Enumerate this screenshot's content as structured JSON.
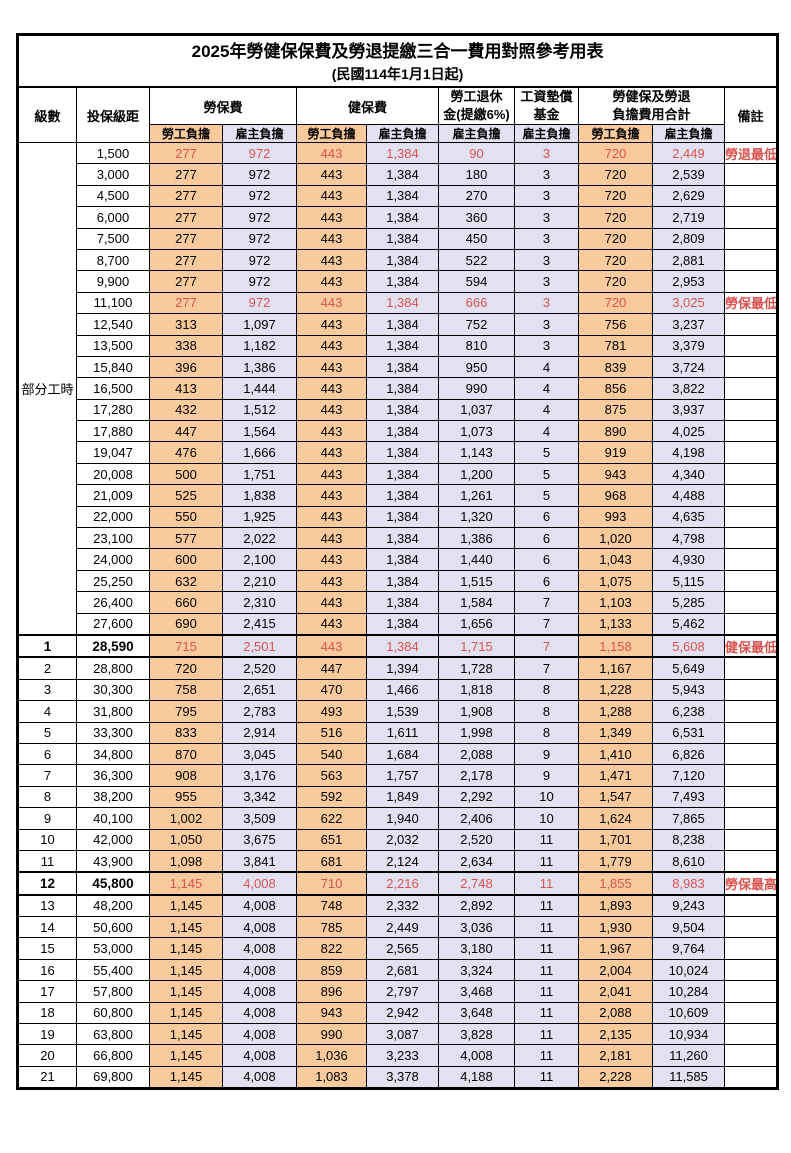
{
  "title": "2025年勞健保保費及勞退提繳三合一費用對照參考用表",
  "subtitle": "(民國114年1月1日起)",
  "header": {
    "level": "級數",
    "bracket": "投保級距",
    "labor_insurance": "勞保費",
    "health_insurance": "健保費",
    "pension_line1": "勞工退休",
    "pension_line2": "金(提繳6%)",
    "wage_fund_line1": "工資墊償",
    "wage_fund_line2": "基金",
    "total_line1": "勞健保及勞退",
    "total_line2": "負擔費用合計",
    "remark": "備註",
    "employee_share": "勞工負擔",
    "employer_share": "雇主負擔"
  },
  "part_time_label": "部分工時",
  "colors": {
    "employee_bg": "#F9CB9C",
    "employer_bg": "#E1E1F1",
    "highlight_red": "#D9534F"
  },
  "rows": [
    {
      "level": "",
      "bracket": "1,500",
      "li_emp": "277",
      "li_er": "972",
      "hi_emp": "443",
      "hi_er": "1,384",
      "pension": "90",
      "wage": "3",
      "tot_emp": "720",
      "tot_er": "2,449",
      "note": "勞退最低級距",
      "red": true,
      "bold": false
    },
    {
      "level": "",
      "bracket": "3,000",
      "li_emp": "277",
      "li_er": "972",
      "hi_emp": "443",
      "hi_er": "1,384",
      "pension": "180",
      "wage": "3",
      "tot_emp": "720",
      "tot_er": "2,539",
      "note": "",
      "red": false,
      "bold": false
    },
    {
      "level": "",
      "bracket": "4,500",
      "li_emp": "277",
      "li_er": "972",
      "hi_emp": "443",
      "hi_er": "1,384",
      "pension": "270",
      "wage": "3",
      "tot_emp": "720",
      "tot_er": "2,629",
      "note": "",
      "red": false,
      "bold": false
    },
    {
      "level": "",
      "bracket": "6,000",
      "li_emp": "277",
      "li_er": "972",
      "hi_emp": "443",
      "hi_er": "1,384",
      "pension": "360",
      "wage": "3",
      "tot_emp": "720",
      "tot_er": "2,719",
      "note": "",
      "red": false,
      "bold": false
    },
    {
      "level": "",
      "bracket": "7,500",
      "li_emp": "277",
      "li_er": "972",
      "hi_emp": "443",
      "hi_er": "1,384",
      "pension": "450",
      "wage": "3",
      "tot_emp": "720",
      "tot_er": "2,809",
      "note": "",
      "red": false,
      "bold": false
    },
    {
      "level": "",
      "bracket": "8,700",
      "li_emp": "277",
      "li_er": "972",
      "hi_emp": "443",
      "hi_er": "1,384",
      "pension": "522",
      "wage": "3",
      "tot_emp": "720",
      "tot_er": "2,881",
      "note": "",
      "red": false,
      "bold": false
    },
    {
      "level": "",
      "bracket": "9,900",
      "li_emp": "277",
      "li_er": "972",
      "hi_emp": "443",
      "hi_er": "1,384",
      "pension": "594",
      "wage": "3",
      "tot_emp": "720",
      "tot_er": "2,953",
      "note": "",
      "red": false,
      "bold": false
    },
    {
      "level": "",
      "bracket": "11,100",
      "li_emp": "277",
      "li_er": "972",
      "hi_emp": "443",
      "hi_er": "1,384",
      "pension": "666",
      "wage": "3",
      "tot_emp": "720",
      "tot_er": "3,025",
      "note": "勞保最低級距",
      "red": true,
      "bold": false
    },
    {
      "level": "",
      "bracket": "12,540",
      "li_emp": "313",
      "li_er": "1,097",
      "hi_emp": "443",
      "hi_er": "1,384",
      "pension": "752",
      "wage": "3",
      "tot_emp": "756",
      "tot_er": "3,237",
      "note": "",
      "red": false,
      "bold": false
    },
    {
      "level": "",
      "bracket": "13,500",
      "li_emp": "338",
      "li_er": "1,182",
      "hi_emp": "443",
      "hi_er": "1,384",
      "pension": "810",
      "wage": "3",
      "tot_emp": "781",
      "tot_er": "3,379",
      "note": "",
      "red": false,
      "bold": false
    },
    {
      "level": "",
      "bracket": "15,840",
      "li_emp": "396",
      "li_er": "1,386",
      "hi_emp": "443",
      "hi_er": "1,384",
      "pension": "950",
      "wage": "4",
      "tot_emp": "839",
      "tot_er": "3,724",
      "note": "",
      "red": false,
      "bold": false
    },
    {
      "level": "",
      "bracket": "16,500",
      "li_emp": "413",
      "li_er": "1,444",
      "hi_emp": "443",
      "hi_er": "1,384",
      "pension": "990",
      "wage": "4",
      "tot_emp": "856",
      "tot_er": "3,822",
      "note": "",
      "red": false,
      "bold": false
    },
    {
      "level": "",
      "bracket": "17,280",
      "li_emp": "432",
      "li_er": "1,512",
      "hi_emp": "443",
      "hi_er": "1,384",
      "pension": "1,037",
      "wage": "4",
      "tot_emp": "875",
      "tot_er": "3,937",
      "note": "",
      "red": false,
      "bold": false
    },
    {
      "level": "",
      "bracket": "17,880",
      "li_emp": "447",
      "li_er": "1,564",
      "hi_emp": "443",
      "hi_er": "1,384",
      "pension": "1,073",
      "wage": "4",
      "tot_emp": "890",
      "tot_er": "4,025",
      "note": "",
      "red": false,
      "bold": false
    },
    {
      "level": "",
      "bracket": "19,047",
      "li_emp": "476",
      "li_er": "1,666",
      "hi_emp": "443",
      "hi_er": "1,384",
      "pension": "1,143",
      "wage": "5",
      "tot_emp": "919",
      "tot_er": "4,198",
      "note": "",
      "red": false,
      "bold": false
    },
    {
      "level": "",
      "bracket": "20,008",
      "li_emp": "500",
      "li_er": "1,751",
      "hi_emp": "443",
      "hi_er": "1,384",
      "pension": "1,200",
      "wage": "5",
      "tot_emp": "943",
      "tot_er": "4,340",
      "note": "",
      "red": false,
      "bold": false
    },
    {
      "level": "",
      "bracket": "21,009",
      "li_emp": "525",
      "li_er": "1,838",
      "hi_emp": "443",
      "hi_er": "1,384",
      "pension": "1,261",
      "wage": "5",
      "tot_emp": "968",
      "tot_er": "4,488",
      "note": "",
      "red": false,
      "bold": false
    },
    {
      "level": "",
      "bracket": "22,000",
      "li_emp": "550",
      "li_er": "1,925",
      "hi_emp": "443",
      "hi_er": "1,384",
      "pension": "1,320",
      "wage": "6",
      "tot_emp": "993",
      "tot_er": "4,635",
      "note": "",
      "red": false,
      "bold": false
    },
    {
      "level": "",
      "bracket": "23,100",
      "li_emp": "577",
      "li_er": "2,022",
      "hi_emp": "443",
      "hi_er": "1,384",
      "pension": "1,386",
      "wage": "6",
      "tot_emp": "1,020",
      "tot_er": "4,798",
      "note": "",
      "red": false,
      "bold": false
    },
    {
      "level": "",
      "bracket": "24,000",
      "li_emp": "600",
      "li_er": "2,100",
      "hi_emp": "443",
      "hi_er": "1,384",
      "pension": "1,440",
      "wage": "6",
      "tot_emp": "1,043",
      "tot_er": "4,930",
      "note": "",
      "red": false,
      "bold": false
    },
    {
      "level": "",
      "bracket": "25,250",
      "li_emp": "632",
      "li_er": "2,210",
      "hi_emp": "443",
      "hi_er": "1,384",
      "pension": "1,515",
      "wage": "6",
      "tot_emp": "1,075",
      "tot_er": "5,115",
      "note": "",
      "red": false,
      "bold": false
    },
    {
      "level": "",
      "bracket": "26,400",
      "li_emp": "660",
      "li_er": "2,310",
      "hi_emp": "443",
      "hi_er": "1,384",
      "pension": "1,584",
      "wage": "7",
      "tot_emp": "1,103",
      "tot_er": "5,285",
      "note": "",
      "red": false,
      "bold": false
    },
    {
      "level": "",
      "bracket": "27,600",
      "li_emp": "690",
      "li_er": "2,415",
      "hi_emp": "443",
      "hi_er": "1,384",
      "pension": "1,656",
      "wage": "7",
      "tot_emp": "1,133",
      "tot_er": "5,462",
      "note": "",
      "red": false,
      "bold": false
    },
    {
      "level": "1",
      "bracket": "28,590",
      "li_emp": "715",
      "li_er": "2,501",
      "hi_emp": "443",
      "hi_er": "1,384",
      "pension": "1,715",
      "wage": "7",
      "tot_emp": "1,158",
      "tot_er": "5,608",
      "note": "健保最低級距",
      "red": true,
      "bold": true
    },
    {
      "level": "2",
      "bracket": "28,800",
      "li_emp": "720",
      "li_er": "2,520",
      "hi_emp": "447",
      "hi_er": "1,394",
      "pension": "1,728",
      "wage": "7",
      "tot_emp": "1,167",
      "tot_er": "5,649",
      "note": "",
      "red": false,
      "bold": false
    },
    {
      "level": "3",
      "bracket": "30,300",
      "li_emp": "758",
      "li_er": "2,651",
      "hi_emp": "470",
      "hi_er": "1,466",
      "pension": "1,818",
      "wage": "8",
      "tot_emp": "1,228",
      "tot_er": "5,943",
      "note": "",
      "red": false,
      "bold": false
    },
    {
      "level": "4",
      "bracket": "31,800",
      "li_emp": "795",
      "li_er": "2,783",
      "hi_emp": "493",
      "hi_er": "1,539",
      "pension": "1,908",
      "wage": "8",
      "tot_emp": "1,288",
      "tot_er": "6,238",
      "note": "",
      "red": false,
      "bold": false
    },
    {
      "level": "5",
      "bracket": "33,300",
      "li_emp": "833",
      "li_er": "2,914",
      "hi_emp": "516",
      "hi_er": "1,611",
      "pension": "1,998",
      "wage": "8",
      "tot_emp": "1,349",
      "tot_er": "6,531",
      "note": "",
      "red": false,
      "bold": false
    },
    {
      "level": "6",
      "bracket": "34,800",
      "li_emp": "870",
      "li_er": "3,045",
      "hi_emp": "540",
      "hi_er": "1,684",
      "pension": "2,088",
      "wage": "9",
      "tot_emp": "1,410",
      "tot_er": "6,826",
      "note": "",
      "red": false,
      "bold": false
    },
    {
      "level": "7",
      "bracket": "36,300",
      "li_emp": "908",
      "li_er": "3,176",
      "hi_emp": "563",
      "hi_er": "1,757",
      "pension": "2,178",
      "wage": "9",
      "tot_emp": "1,471",
      "tot_er": "7,120",
      "note": "",
      "red": false,
      "bold": false
    },
    {
      "level": "8",
      "bracket": "38,200",
      "li_emp": "955",
      "li_er": "3,342",
      "hi_emp": "592",
      "hi_er": "1,849",
      "pension": "2,292",
      "wage": "10",
      "tot_emp": "1,547",
      "tot_er": "7,493",
      "note": "",
      "red": false,
      "bold": false
    },
    {
      "level": "9",
      "bracket": "40,100",
      "li_emp": "1,002",
      "li_er": "3,509",
      "hi_emp": "622",
      "hi_er": "1,940",
      "pension": "2,406",
      "wage": "10",
      "tot_emp": "1,624",
      "tot_er": "7,865",
      "note": "",
      "red": false,
      "bold": false
    },
    {
      "level": "10",
      "bracket": "42,000",
      "li_emp": "1,050",
      "li_er": "3,675",
      "hi_emp": "651",
      "hi_er": "2,032",
      "pension": "2,520",
      "wage": "11",
      "tot_emp": "1,701",
      "tot_er": "8,238",
      "note": "",
      "red": false,
      "bold": false
    },
    {
      "level": "11",
      "bracket": "43,900",
      "li_emp": "1,098",
      "li_er": "3,841",
      "hi_emp": "681",
      "hi_er": "2,124",
      "pension": "2,634",
      "wage": "11",
      "tot_emp": "1,779",
      "tot_er": "8,610",
      "note": "",
      "red": false,
      "bold": false
    },
    {
      "level": "12",
      "bracket": "45,800",
      "li_emp": "1,145",
      "li_er": "4,008",
      "hi_emp": "710",
      "hi_er": "2,216",
      "pension": "2,748",
      "wage": "11",
      "tot_emp": "1,855",
      "tot_er": "8,983",
      "note": "勞保最高級距",
      "red": true,
      "bold": true
    },
    {
      "level": "13",
      "bracket": "48,200",
      "li_emp": "1,145",
      "li_er": "4,008",
      "hi_emp": "748",
      "hi_er": "2,332",
      "pension": "2,892",
      "wage": "11",
      "tot_emp": "1,893",
      "tot_er": "9,243",
      "note": "",
      "red": false,
      "bold": false
    },
    {
      "level": "14",
      "bracket": "50,600",
      "li_emp": "1,145",
      "li_er": "4,008",
      "hi_emp": "785",
      "hi_er": "2,449",
      "pension": "3,036",
      "wage": "11",
      "tot_emp": "1,930",
      "tot_er": "9,504",
      "note": "",
      "red": false,
      "bold": false
    },
    {
      "level": "15",
      "bracket": "53,000",
      "li_emp": "1,145",
      "li_er": "4,008",
      "hi_emp": "822",
      "hi_er": "2,565",
      "pension": "3,180",
      "wage": "11",
      "tot_emp": "1,967",
      "tot_er": "9,764",
      "note": "",
      "red": false,
      "bold": false
    },
    {
      "level": "16",
      "bracket": "55,400",
      "li_emp": "1,145",
      "li_er": "4,008",
      "hi_emp": "859",
      "hi_er": "2,681",
      "pension": "3,324",
      "wage": "11",
      "tot_emp": "2,004",
      "tot_er": "10,024",
      "note": "",
      "red": false,
      "bold": false
    },
    {
      "level": "17",
      "bracket": "57,800",
      "li_emp": "1,145",
      "li_er": "4,008",
      "hi_emp": "896",
      "hi_er": "2,797",
      "pension": "3,468",
      "wage": "11",
      "tot_emp": "2,041",
      "tot_er": "10,284",
      "note": "",
      "red": false,
      "bold": false
    },
    {
      "level": "18",
      "bracket": "60,800",
      "li_emp": "1,145",
      "li_er": "4,008",
      "hi_emp": "943",
      "hi_er": "2,942",
      "pension": "3,648",
      "wage": "11",
      "tot_emp": "2,088",
      "tot_er": "10,609",
      "note": "",
      "red": false,
      "bold": false
    },
    {
      "level": "19",
      "bracket": "63,800",
      "li_emp": "1,145",
      "li_er": "4,008",
      "hi_emp": "990",
      "hi_er": "3,087",
      "pension": "3,828",
      "wage": "11",
      "tot_emp": "2,135",
      "tot_er": "10,934",
      "note": "",
      "red": false,
      "bold": false
    },
    {
      "level": "20",
      "bracket": "66,800",
      "li_emp": "1,145",
      "li_er": "4,008",
      "hi_emp": "1,036",
      "hi_er": "3,233",
      "pension": "4,008",
      "wage": "11",
      "tot_emp": "2,181",
      "tot_er": "11,260",
      "note": "",
      "red": false,
      "bold": false
    },
    {
      "level": "21",
      "bracket": "69,800",
      "li_emp": "1,145",
      "li_er": "4,008",
      "hi_emp": "1,083",
      "hi_er": "3,378",
      "pension": "4,188",
      "wage": "11",
      "tot_emp": "2,228",
      "tot_er": "11,585",
      "note": "",
      "red": false,
      "bold": false
    }
  ]
}
